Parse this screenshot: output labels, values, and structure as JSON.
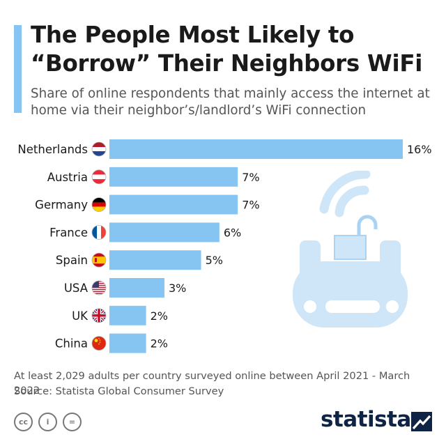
{
  "header": {
    "title": "The People Most Likely to “Borrow” Their Neighbors WiFi",
    "subtitle": "Share of online respondents that mainly access the internet at home via their neighbor’s/landlord’s WiFi connection"
  },
  "chart_data": {
    "type": "bar",
    "orientation": "horizontal",
    "categories": [
      "Netherlands",
      "Austria",
      "Germany",
      "France",
      "Spain",
      "USA",
      "UK",
      "China"
    ],
    "values": [
      16,
      7,
      7,
      6,
      5,
      3,
      2,
      2
    ],
    "value_suffix": "%",
    "bar_color": "#86c5f2",
    "xlim": [
      0,
      16
    ]
  },
  "flags": [
    "netherlands-flag-icon",
    "austria-flag-icon",
    "germany-flag-icon",
    "france-flag-icon",
    "spain-flag-icon",
    "usa-flag-icon",
    "uk-flag-icon",
    "china-flag-icon"
  ],
  "footer": {
    "note": "At least 2,029 adults per country surveyed online between April 2021 - March 2022",
    "source": "Source: Statista Global Consumer Survey",
    "license_icons": [
      "cc",
      "i",
      "="
    ],
    "brand": "statista"
  },
  "illustration": "router-wifi-unlocked-padlock-icon"
}
